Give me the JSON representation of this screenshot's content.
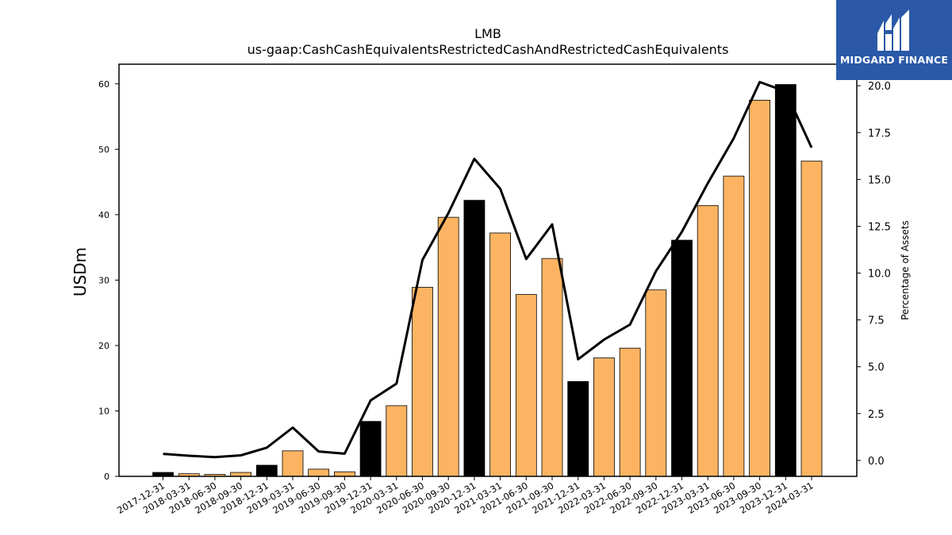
{
  "chart_data": {
    "type": "bar",
    "title": "LMB",
    "subtitle": "us-gaap:CashCashEquivalentsRestrictedCashAndRestrictedCashEquivalents",
    "ylabel": "USDm",
    "y2label": "Percentage of Assets",
    "ylim": [
      0,
      63
    ],
    "y2lim": [
      -0.85,
      21.15
    ],
    "yticks": [
      "0",
      "10",
      "20",
      "30",
      "40",
      "50",
      "60"
    ],
    "y2ticks": [
      "0.0",
      "2.5",
      "5.0",
      "7.5",
      "10.0",
      "12.5",
      "15.0",
      "17.5",
      "20.0"
    ],
    "categories": [
      "2017-12-31",
      "2018-03-31",
      "2018-06-30",
      "2018-09-30",
      "2018-12-31",
      "2019-03-31",
      "2019-06-30",
      "2019-09-30",
      "2019-12-31",
      "2020-03-31",
      "2020-06-30",
      "2020-09-30",
      "2020-12-31",
      "2021-03-31",
      "2021-06-30",
      "2021-09-30",
      "2021-12-31",
      "2022-03-31",
      "2022-06-30",
      "2022-09-30",
      "2022-12-31",
      "2023-03-31",
      "2023-06-30",
      "2023-09-30",
      "2023-12-31",
      "2024-03-31"
    ],
    "series": [
      {
        "type": "bar",
        "values": [
          0.6,
          0.4,
          0.3,
          0.6,
          1.7,
          3.9,
          1.1,
          0.7,
          8.4,
          10.8,
          28.9,
          39.6,
          42.2,
          37.2,
          27.8,
          33.3,
          14.5,
          18.1,
          19.6,
          28.5,
          36.1,
          41.4,
          45.9,
          57.5,
          59.9,
          48.2
        ]
      },
      {
        "type": "line",
        "axis": "right",
        "values": [
          0.35,
          0.25,
          0.18,
          0.27,
          0.68,
          1.75,
          0.48,
          0.36,
          3.2,
          4.1,
          10.7,
          13.2,
          16.1,
          14.5,
          10.75,
          12.6,
          5.4,
          6.45,
          7.25,
          10.1,
          12.2,
          14.8,
          17.2,
          20.2,
          19.7,
          16.7
        ]
      }
    ],
    "bar_colors": [
      "#000000",
      "#fdb462",
      "#fdb462",
      "#fdb462",
      "#000000",
      "#fdb462",
      "#fdb462",
      "#fdb462",
      "#000000",
      "#fdb462",
      "#fdb462",
      "#fdb462",
      "#000000",
      "#fdb462",
      "#fdb462",
      "#fdb462",
      "#000000",
      "#fdb462",
      "#fdb462",
      "#fdb462",
      "#000000",
      "#fdb462",
      "#fdb462",
      "#fdb462",
      "#000000",
      "#fdb462"
    ],
    "line_color": "#000000",
    "grid": false,
    "legend": "none"
  },
  "logo": {
    "brand": "MIDGARD FINANCE",
    "icon": "midgard-m-icon",
    "background": "#2b59a8"
  }
}
